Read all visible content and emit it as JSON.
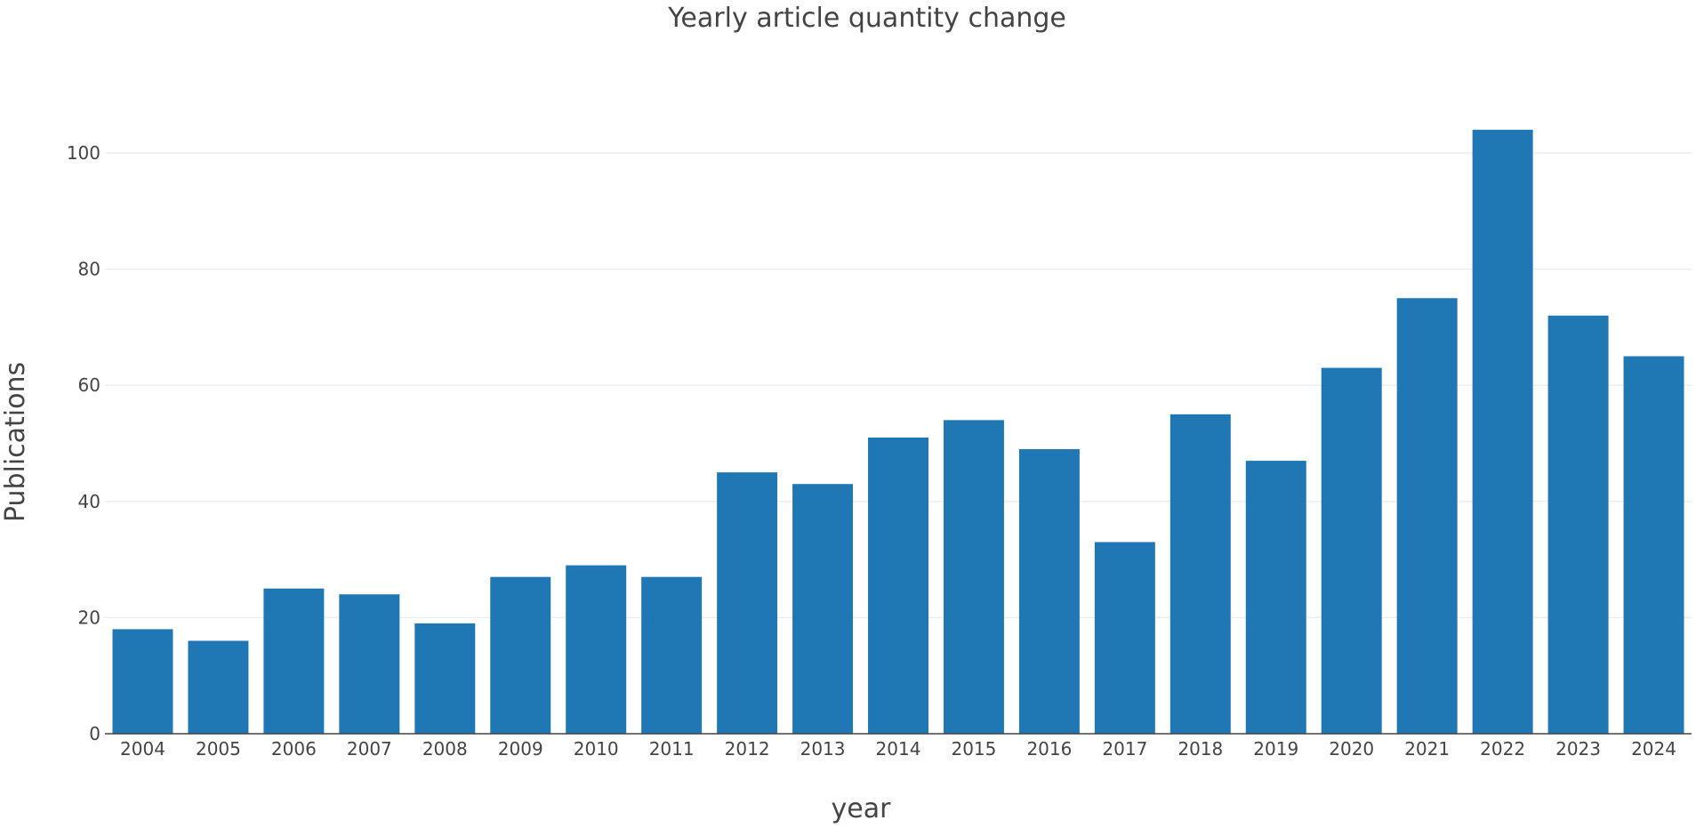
{
  "chart_data": {
    "type": "bar",
    "title": "Yearly article quantity change",
    "xlabel": "year",
    "ylabel": "Publications",
    "categories": [
      "2004",
      "2005",
      "2006",
      "2007",
      "2008",
      "2009",
      "2010",
      "2011",
      "2012",
      "2013",
      "2014",
      "2015",
      "2016",
      "2017",
      "2018",
      "2019",
      "2020",
      "2021",
      "2022",
      "2023",
      "2024"
    ],
    "values": [
      18,
      16,
      25,
      24,
      19,
      27,
      29,
      27,
      45,
      43,
      51,
      54,
      49,
      33,
      55,
      47,
      63,
      75,
      104,
      72,
      65
    ],
    "ylim": [
      0,
      110
    ],
    "yticks": [
      0,
      20,
      40,
      60,
      80,
      100
    ],
    "grid": true,
    "bar_color": "#1f77b4",
    "legend": "none"
  }
}
